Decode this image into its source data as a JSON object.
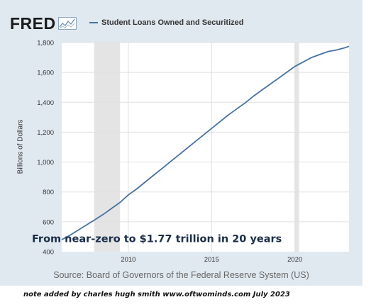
{
  "logo": {
    "text": "FRED",
    "icon": "fred-chart-icon"
  },
  "colors": {
    "panel": "#e1e9f0",
    "plot": "#ffffff",
    "series": "#4572a7",
    "recession": "#e4e4e4",
    "grid": "#e0e0e0"
  },
  "chart_data": {
    "type": "line",
    "title": "",
    "xlabel": "",
    "ylabel": "Billions of Dollars",
    "xlim": [
      2006.0,
      2023.25
    ],
    "ylim": [
      400,
      1800
    ],
    "xticks": [
      2010,
      2015,
      2020
    ],
    "yticks": [
      400,
      600,
      800,
      1000,
      1200,
      1400,
      1600,
      1800
    ],
    "ytick_labels": [
      "400",
      "600",
      "800",
      "1,000",
      "1,200",
      "1,400",
      "1,600",
      "1,800"
    ],
    "grid": true,
    "legend_position": "top",
    "recessions": [
      [
        2007.95,
        2009.5
      ],
      [
        2020.0,
        2020.25
      ]
    ],
    "series": [
      {
        "name": "Student Loans Owned and Securitized",
        "x": [
          2006.0,
          2006.5,
          2007.0,
          2007.5,
          2008.0,
          2008.5,
          2009.0,
          2009.5,
          2010.0,
          2010.5,
          2011.0,
          2011.5,
          2012.0,
          2012.5,
          2013.0,
          2013.5,
          2014.0,
          2014.5,
          2015.0,
          2015.5,
          2016.0,
          2016.5,
          2017.0,
          2017.5,
          2018.0,
          2018.5,
          2019.0,
          2019.5,
          2020.0,
          2020.5,
          2021.0,
          2021.5,
          2022.0,
          2022.5,
          2023.0,
          2023.25
        ],
        "values": [
          480,
          510,
          545,
          580,
          615,
          650,
          690,
          730,
          780,
          820,
          865,
          910,
          955,
          1000,
          1045,
          1090,
          1135,
          1180,
          1225,
          1270,
          1315,
          1355,
          1395,
          1440,
          1480,
          1520,
          1560,
          1600,
          1640,
          1670,
          1700,
          1720,
          1740,
          1750,
          1765,
          1775
        ]
      }
    ],
    "annotations": [
      {
        "text": "From near-zero to $1.77 trillion in 20 years",
        "x": 2011.5,
        "y": 455
      }
    ]
  },
  "source": "Source: Board of Governors of the Federal Reserve System (US)",
  "note": "note added by charles hugh smith  www.oftwominds.com   July 2023"
}
